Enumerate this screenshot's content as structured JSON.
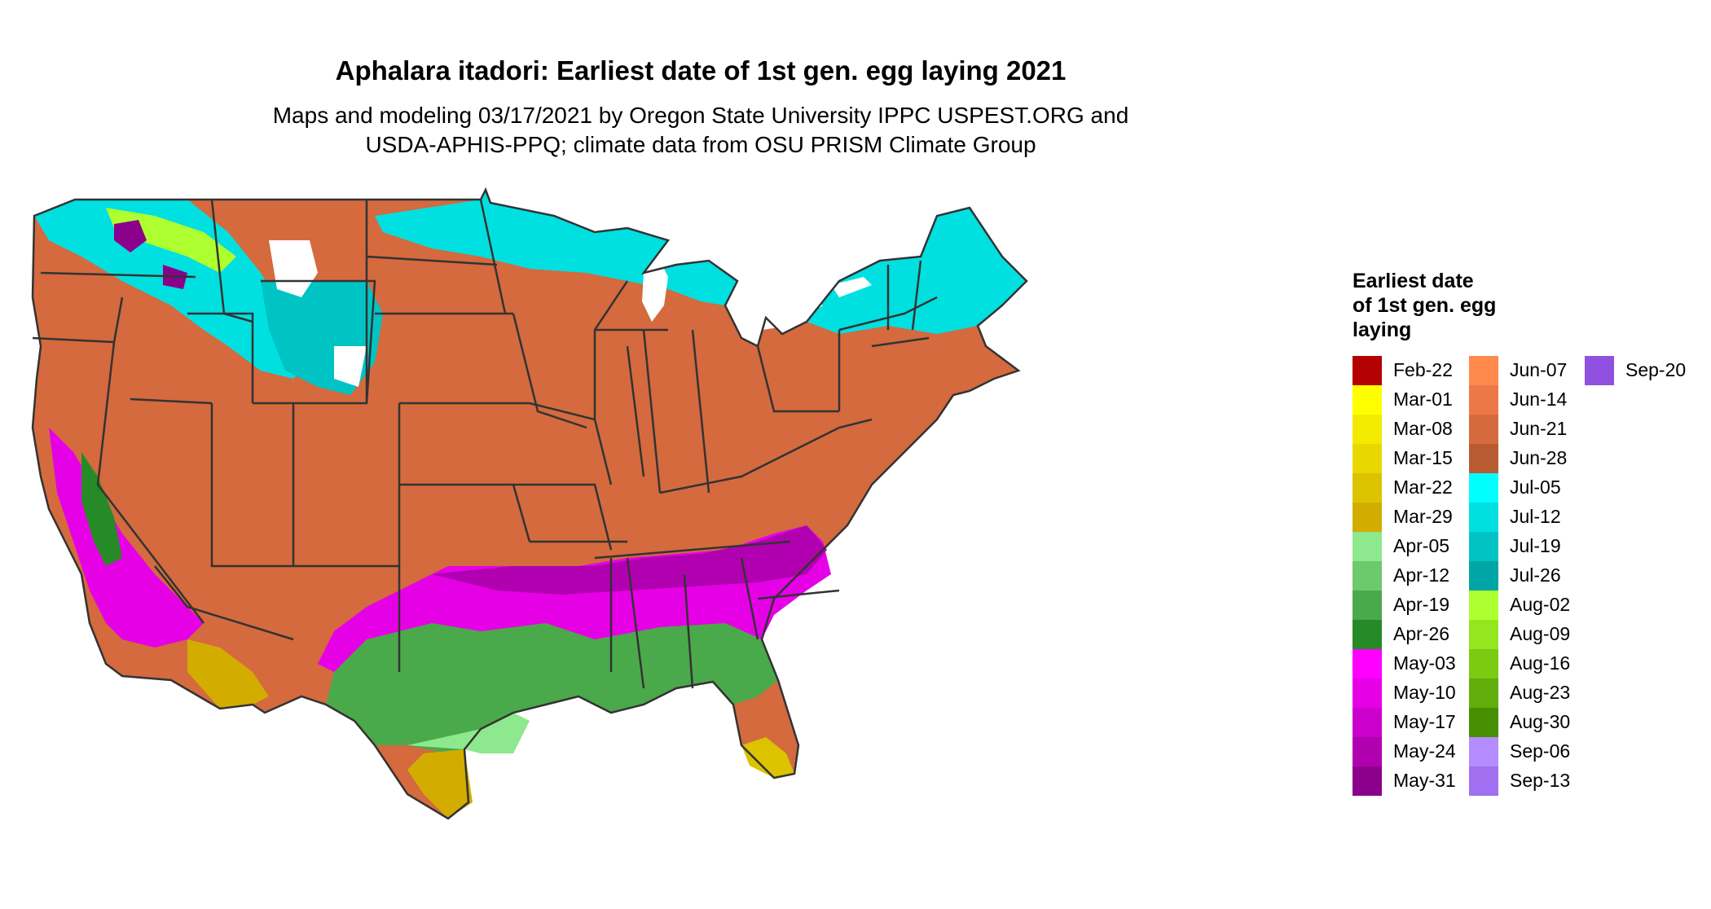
{
  "title": "Aphalara itadori: Earliest date of 1st gen. egg laying 2021",
  "subtitle_line1": "Maps and modeling 03/17/2021 by Oregon State University IPPC USPEST.ORG and",
  "subtitle_line2": "USDA-APHIS-PPQ; climate data from OSU PRISM Climate Group",
  "legend": {
    "title_lines": [
      "Earliest date",
      "of 1st gen. egg",
      "laying"
    ],
    "items": [
      {
        "label": "Feb-22",
        "color": "#b30000"
      },
      {
        "label": "Mar-01",
        "color": "#ffff00"
      },
      {
        "label": "Mar-08",
        "color": "#f2ea00"
      },
      {
        "label": "Mar-15",
        "color": "#e8d800"
      },
      {
        "label": "Mar-22",
        "color": "#dcc300"
      },
      {
        "label": "Mar-29",
        "color": "#d2ad00"
      },
      {
        "label": "Apr-05",
        "color": "#8ee88e"
      },
      {
        "label": "Apr-12",
        "color": "#6cc96c"
      },
      {
        "label": "Apr-19",
        "color": "#4aa94a"
      },
      {
        "label": "Apr-26",
        "color": "#268a26"
      },
      {
        "label": "May-03",
        "color": "#ff00ff"
      },
      {
        "label": "May-10",
        "color": "#e600e6"
      },
      {
        "label": "May-17",
        "color": "#cc00cc"
      },
      {
        "label": "May-24",
        "color": "#b000b0"
      },
      {
        "label": "May-31",
        "color": "#8b008b"
      },
      {
        "label": "Jun-07",
        "color": "#ff8a4c"
      },
      {
        "label": "Jun-14",
        "color": "#ec7848"
      },
      {
        "label": "Jun-21",
        "color": "#d46a3e"
      },
      {
        "label": "Jun-28",
        "color": "#b85a32"
      },
      {
        "label": "Jul-05",
        "color": "#00ffff"
      },
      {
        "label": "Jul-12",
        "color": "#00e0e0"
      },
      {
        "label": "Jul-19",
        "color": "#00c4c4"
      },
      {
        "label": "Jul-26",
        "color": "#00a6a6"
      },
      {
        "label": "Aug-02",
        "color": "#adff2f"
      },
      {
        "label": "Aug-09",
        "color": "#95e61e"
      },
      {
        "label": "Aug-16",
        "color": "#7ccb12"
      },
      {
        "label": "Aug-23",
        "color": "#62ae0a"
      },
      {
        "label": "Aug-30",
        "color": "#468f00"
      },
      {
        "label": "Sep-06",
        "color": "#b48cff"
      },
      {
        "label": "Sep-13",
        "color": "#a070f0"
      },
      {
        "label": "Sep-20",
        "color": "#9050e0"
      }
    ]
  }
}
